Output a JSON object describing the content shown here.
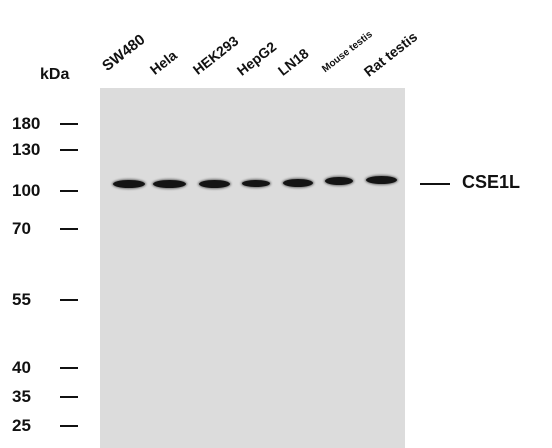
{
  "figure": {
    "unit_label": "kDa",
    "target": "CSE1L",
    "lanes": [
      {
        "label": "SW480"
      },
      {
        "label": "Hela"
      },
      {
        "label": "HEK293"
      },
      {
        "label": "HepG2"
      },
      {
        "label": "LN18"
      },
      {
        "label": "Mouse testis"
      },
      {
        "label": "Rat testis"
      }
    ],
    "markers": [
      "180",
      "130",
      "100",
      "70",
      "55",
      "40",
      "35",
      "25"
    ],
    "colors": {
      "membrane": "#dcdcdc",
      "band": "#141414",
      "text": "#111111"
    }
  }
}
